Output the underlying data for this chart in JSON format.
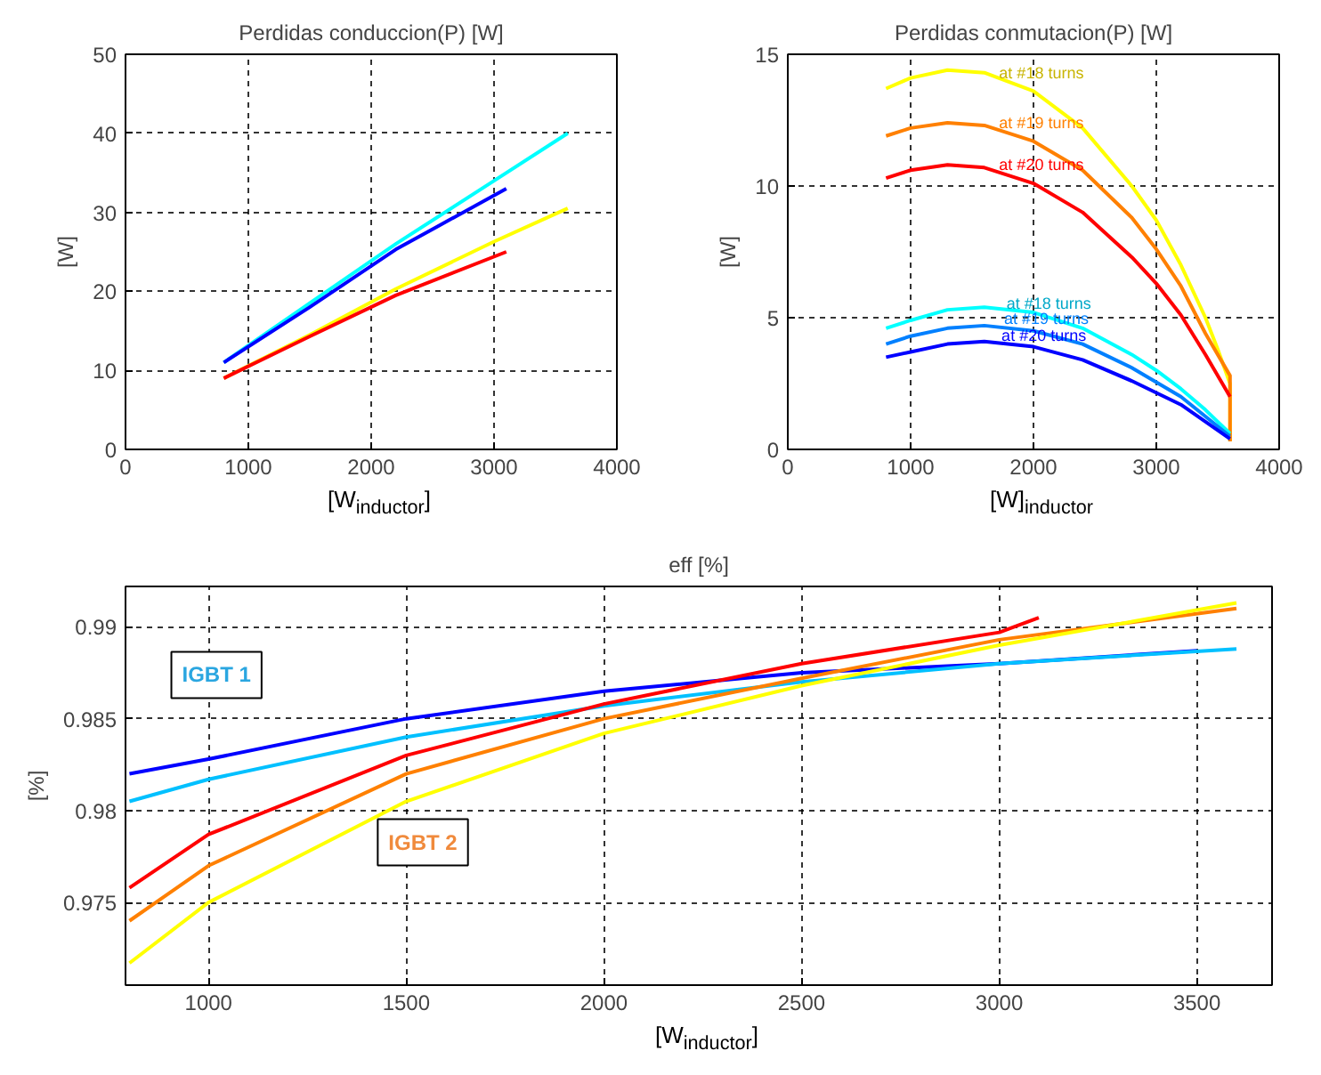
{
  "chart_data": [
    {
      "type": "line",
      "title": "Perdidas conduccion(P) [W]",
      "xlabel": "[W$_{inductor}$]",
      "ylabel": "[W]",
      "xlim": [
        0,
        4000
      ],
      "xticks": [
        0,
        1000,
        2000,
        3000,
        4000
      ],
      "ylim": [
        0,
        50
      ],
      "yticks": [
        0,
        10,
        20,
        30,
        40,
        50
      ],
      "grid": true,
      "line_style": "solid",
      "series": [
        {
          "color": "#00ffff",
          "x": [
            800,
            1500,
            2200,
            3000,
            3600
          ],
          "values": [
            11,
            18.5,
            26,
            34,
            40
          ]
        },
        {
          "color": "#0000ff",
          "x": [
            800,
            1500,
            2200,
            3100
          ],
          "values": [
            11,
            18,
            25.3,
            33
          ]
        },
        {
          "color": "#ffff00",
          "x": [
            800,
            1500,
            2200,
            3000,
            3600
          ],
          "values": [
            9,
            14.5,
            20.3,
            26.3,
            30.5
          ]
        },
        {
          "color": "#ff0000",
          "x": [
            800,
            1500,
            2200,
            3100
          ],
          "values": [
            9,
            14.3,
            19.5,
            25
          ]
        }
      ]
    },
    {
      "type": "line",
      "title": "Perdidas conmutacion(P) [W]",
      "xlabel": "[W]$_{inductor}$",
      "ylabel": "[W]",
      "xlim": [
        0,
        4000
      ],
      "xticks": [
        0,
        1000,
        2000,
        3000,
        4000
      ],
      "ylim": [
        0,
        15
      ],
      "yticks": [
        0,
        5,
        10,
        15
      ],
      "grid": true,
      "line_style": "solid",
      "series": [
        {
          "color": "#ffff00",
          "x": [
            800,
            1000,
            1300,
            1600,
            2000,
            2400,
            2800,
            3000,
            3200,
            3400,
            3500,
            3600,
            3600
          ],
          "values": [
            13.7,
            14.1,
            14.4,
            14.3,
            13.6,
            12.2,
            10.0,
            8.7,
            7.0,
            5.0,
            3.8,
            2.5,
            0.3
          ]
        },
        {
          "color": "#ff8000",
          "x": [
            800,
            1000,
            1300,
            1600,
            2000,
            2400,
            2800,
            3000,
            3200,
            3400,
            3600,
            3600
          ],
          "values": [
            11.9,
            12.2,
            12.4,
            12.3,
            11.7,
            10.6,
            8.8,
            7.6,
            6.2,
            4.4,
            2.8,
            0.3
          ]
        },
        {
          "color": "#ff0000",
          "x": [
            800,
            1000,
            1300,
            1600,
            2000,
            2400,
            2800,
            3000,
            3200,
            3400,
            3600
          ],
          "values": [
            10.3,
            10.6,
            10.8,
            10.7,
            10.1,
            9.0,
            7.3,
            6.3,
            5.1,
            3.6,
            2.0
          ]
        },
        {
          "color": "#00ffff",
          "x": [
            800,
            1000,
            1300,
            1600,
            2000,
            2400,
            2800,
            3000,
            3200,
            3400,
            3600
          ],
          "values": [
            4.6,
            4.9,
            5.3,
            5.4,
            5.2,
            4.6,
            3.6,
            3.0,
            2.3,
            1.5,
            0.6
          ]
        },
        {
          "color": "#0080ff",
          "x": [
            800,
            1000,
            1300,
            1600,
            2000,
            2400,
            2800,
            3200,
            3600
          ],
          "values": [
            4.0,
            4.3,
            4.6,
            4.7,
            4.5,
            4.0,
            3.1,
            2.0,
            0.5
          ]
        },
        {
          "color": "#0000ff",
          "x": [
            800,
            1000,
            1300,
            1600,
            2000,
            2400,
            2800,
            3200,
            3600
          ],
          "values": [
            3.5,
            3.7,
            4.0,
            4.1,
            3.9,
            3.4,
            2.6,
            1.7,
            0.4
          ]
        }
      ],
      "annotations": [
        {
          "text": "at #18 turns",
          "x": 1720,
          "y": 14.3
        },
        {
          "text": "at #19 turns",
          "x": 1720,
          "y": 12.4
        },
        {
          "text": "at #20 turns",
          "x": 1720,
          "y": 10.8
        },
        {
          "text": "at #18 turns",
          "x": 1780,
          "y": 5.55
        },
        {
          "text": "at #19 turns",
          "x": 1760,
          "y": 4.97
        },
        {
          "text": "at #20 turns",
          "x": 1740,
          "y": 4.32
        }
      ]
    },
    {
      "type": "line",
      "title": "eff [%]",
      "xlabel": "[W$_{inductor}$]",
      "ylabel": "[%]",
      "xlim": [
        790,
        3690
      ],
      "xticks": [
        1000,
        1500,
        2000,
        2500,
        3000,
        3500
      ],
      "ylim": [
        0.9705,
        0.9922
      ],
      "yticks": [
        0.975,
        0.98,
        0.985,
        0.99
      ],
      "grid": true,
      "line_style": "solid",
      "series": [
        {
          "color": "#0000ff",
          "x": [
            800,
            1000,
            1500,
            2000,
            2500,
            3000,
            3500
          ],
          "values": [
            0.982,
            0.9828,
            0.985,
            0.9865,
            0.9875,
            0.988,
            0.9887
          ]
        },
        {
          "color": "#00c0ff",
          "x": [
            800,
            1000,
            1500,
            2000,
            2500,
            3000,
            3600
          ],
          "values": [
            0.9805,
            0.9817,
            0.984,
            0.9857,
            0.987,
            0.988,
            0.9888
          ]
        },
        {
          "color": "#ff0000",
          "x": [
            800,
            1000,
            1500,
            2000,
            2500,
            3000,
            3100
          ],
          "values": [
            0.9758,
            0.9787,
            0.983,
            0.9858,
            0.988,
            0.9897,
            0.9905
          ]
        },
        {
          "color": "#ff8000",
          "x": [
            800,
            1000,
            1500,
            2000,
            2500,
            3000,
            3600
          ],
          "values": [
            0.974,
            0.977,
            0.982,
            0.985,
            0.9872,
            0.9893,
            0.991
          ]
        },
        {
          "color": "#ffff00",
          "x": [
            800,
            1000,
            1500,
            2000,
            2500,
            3000,
            3600
          ],
          "values": [
            0.9717,
            0.975,
            0.9805,
            0.9842,
            0.9868,
            0.989,
            0.9913
          ]
        }
      ],
      "annotations": [
        "IGBT 1",
        "IGBT 2"
      ]
    }
  ]
}
